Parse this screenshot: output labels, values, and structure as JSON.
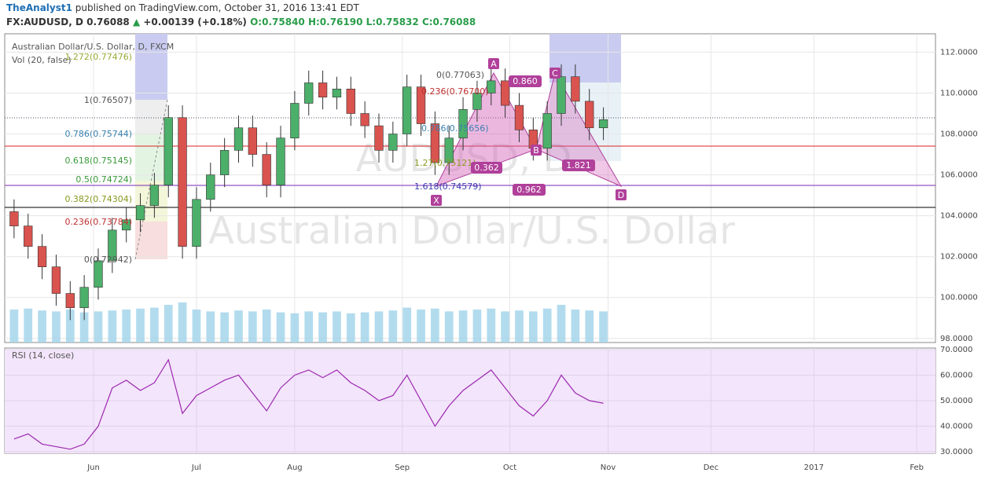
{
  "header": {
    "author": "TheAnalyst1",
    "published": "published on TradingView.com, October 31, 2016 13:41 EDT",
    "symbol": "FX:AUDUSD, D",
    "price": "0.76088",
    "change": "+0.00139 (+0.18%)",
    "open": "O:0.75840",
    "high": "H:0.76190",
    "low": "L:0.75832",
    "close": "C:0.76088"
  },
  "watermark": {
    "symbol": "AUDUSD, D",
    "name": "Australian Dollar/U.S. Dollar"
  },
  "panes": {
    "price": "Australian Dollar/U.S. Dollar, D, FXCM",
    "volume": "Vol (20, false)"
  },
  "fib_left": [
    "1.272(0.77476)",
    "1(0.76507)",
    "0.786(0.75744)",
    "0.618(0.75145)",
    "0.5(0.74724)",
    "0.382(0.74304)",
    "0.236(0.73784)",
    "0(0.72942)"
  ],
  "fib_mid": [
    "0(0.77063)",
    "0.236(0.76700)",
    "0.786(0.75656)",
    "1.27(0.75121)",
    "1.618(0.74579)"
  ],
  "pattern": {
    "points": [
      "X",
      "A",
      "B",
      "C",
      "D"
    ],
    "ratios": [
      "0.860",
      "0.362",
      "0.962",
      "1.821"
    ]
  },
  "chart_data": {
    "type": "candlestick",
    "x": [
      1,
      4,
      7,
      10,
      13,
      16,
      19,
      22,
      25,
      28,
      31,
      34,
      37,
      40,
      43,
      46,
      49,
      52,
      55,
      58,
      61,
      64,
      67,
      70,
      73,
      76,
      79,
      82,
      85,
      88,
      91,
      94,
      97,
      100,
      103,
      106,
      109,
      112,
      115,
      118,
      121,
      124,
      127
    ],
    "open": [
      104.2,
      103.5,
      102.5,
      101.5,
      100.2,
      99.5,
      100.5,
      101.8,
      103.3,
      103.8,
      104.5,
      105.5,
      108.8,
      102.5,
      104.8,
      106.0,
      107.2,
      108.3,
      107.0,
      105.5,
      107.8,
      109.5,
      110.5,
      109.8,
      110.2,
      109.0,
      108.4,
      107.2,
      108.0,
      110.3,
      108.5,
      106.6,
      107.8,
      109.2,
      110.0,
      110.6,
      109.4,
      108.2,
      107.3,
      109.0,
      110.8,
      109.6,
      108.3
    ],
    "high": [
      104.8,
      104.1,
      103.1,
      102.1,
      100.8,
      101.1,
      102.4,
      103.9,
      104.4,
      105.1,
      106.1,
      109.4,
      109.4,
      105.4,
      106.6,
      107.8,
      108.9,
      108.9,
      107.6,
      108.4,
      110.1,
      111.1,
      111.1,
      110.8,
      110.8,
      109.6,
      109.0,
      108.6,
      110.9,
      110.9,
      109.1,
      108.4,
      109.8,
      110.6,
      111.2,
      111.2,
      110.0,
      108.8,
      109.6,
      111.4,
      111.4,
      110.2,
      109.3
    ],
    "low": [
      102.9,
      101.9,
      100.9,
      99.6,
      98.9,
      98.9,
      99.9,
      101.2,
      102.7,
      103.2,
      103.9,
      104.9,
      101.9,
      101.9,
      104.2,
      105.4,
      106.6,
      106.4,
      104.9,
      104.9,
      107.2,
      108.9,
      109.2,
      109.2,
      108.4,
      107.8,
      106.6,
      106.6,
      107.4,
      107.9,
      106.0,
      106.0,
      107.2,
      108.6,
      109.4,
      108.8,
      107.6,
      106.7,
      106.7,
      108.4,
      109.0,
      107.7,
      107.7
    ],
    "close": [
      103.5,
      102.5,
      101.5,
      100.2,
      99.5,
      100.5,
      101.8,
      103.3,
      103.8,
      104.5,
      105.5,
      108.8,
      102.5,
      104.8,
      106.0,
      107.2,
      108.3,
      107.0,
      105.5,
      107.8,
      109.5,
      110.5,
      109.8,
      110.2,
      109.0,
      108.4,
      107.2,
      108.0,
      110.3,
      108.5,
      106.6,
      107.8,
      109.2,
      110.0,
      110.6,
      109.4,
      108.2,
      107.3,
      109.0,
      110.8,
      109.6,
      108.3,
      108.7
    ],
    "volume": [
      70,
      72,
      68,
      66,
      70,
      64,
      66,
      68,
      70,
      72,
      74,
      80,
      85,
      70,
      66,
      64,
      68,
      66,
      70,
      64,
      62,
      66,
      64,
      66,
      62,
      64,
      66,
      68,
      74,
      70,
      72,
      66,
      68,
      70,
      72,
      66,
      68,
      66,
      72,
      80,
      70,
      68,
      66
    ],
    "volume_lim": [
      0,
      100
    ],
    "up_color": "#4caf6a",
    "down_color": "#d9534f",
    "volume_color": "#9fd3ea",
    "xlim": [
      -1,
      198
    ],
    "xticks": [
      {
        "value": 18,
        "label": "Jun"
      },
      {
        "value": 40,
        "label": "Jul"
      },
      {
        "value": 61,
        "label": "Aug"
      },
      {
        "value": 84,
        "label": "Sep"
      },
      {
        "value": 107,
        "label": "Oct"
      },
      {
        "value": 128,
        "label": "Nov"
      },
      {
        "value": 150,
        "label": "Dec"
      },
      {
        "value": 172,
        "label": "2017"
      },
      {
        "value": 194,
        "label": "Feb"
      }
    ],
    "ylim": [
      97.8,
      112.9
    ],
    "yticks": [
      {
        "value": 98,
        "label": "98.0000"
      },
      {
        "value": 100,
        "label": "100.0000"
      },
      {
        "value": 102,
        "label": "102.0000"
      },
      {
        "value": 104,
        "label": "104.0000"
      },
      {
        "value": 106,
        "label": "106.0000"
      },
      {
        "value": 108,
        "label": "108.0000"
      },
      {
        "value": 110,
        "label": "110.0000"
      },
      {
        "value": 112,
        "label": "112.0000"
      }
    ],
    "grid": true
  },
  "rsi": {
    "title": "RSI (14, close)",
    "color": "#9c27b0",
    "values": [
      35,
      37,
      33,
      32,
      31,
      33,
      40,
      55,
      58,
      54,
      57,
      66,
      45,
      52,
      55,
      58,
      60,
      53,
      46,
      55,
      60,
      62,
      59,
      62,
      57,
      54,
      50,
      52,
      60,
      50,
      40,
      48,
      54,
      58,
      62,
      55,
      48,
      44,
      50,
      60,
      53,
      50,
      49
    ],
    "ylim": [
      29.4,
      70.6
    ],
    "yticks": [
      {
        "value": 30,
        "label": "30.0000"
      },
      {
        "value": 40,
        "label": "40.0000"
      },
      {
        "value": 50,
        "label": "50.0000"
      },
      {
        "value": 60,
        "label": "60.0000"
      },
      {
        "value": 70,
        "label": "70.0000"
      }
    ]
  }
}
